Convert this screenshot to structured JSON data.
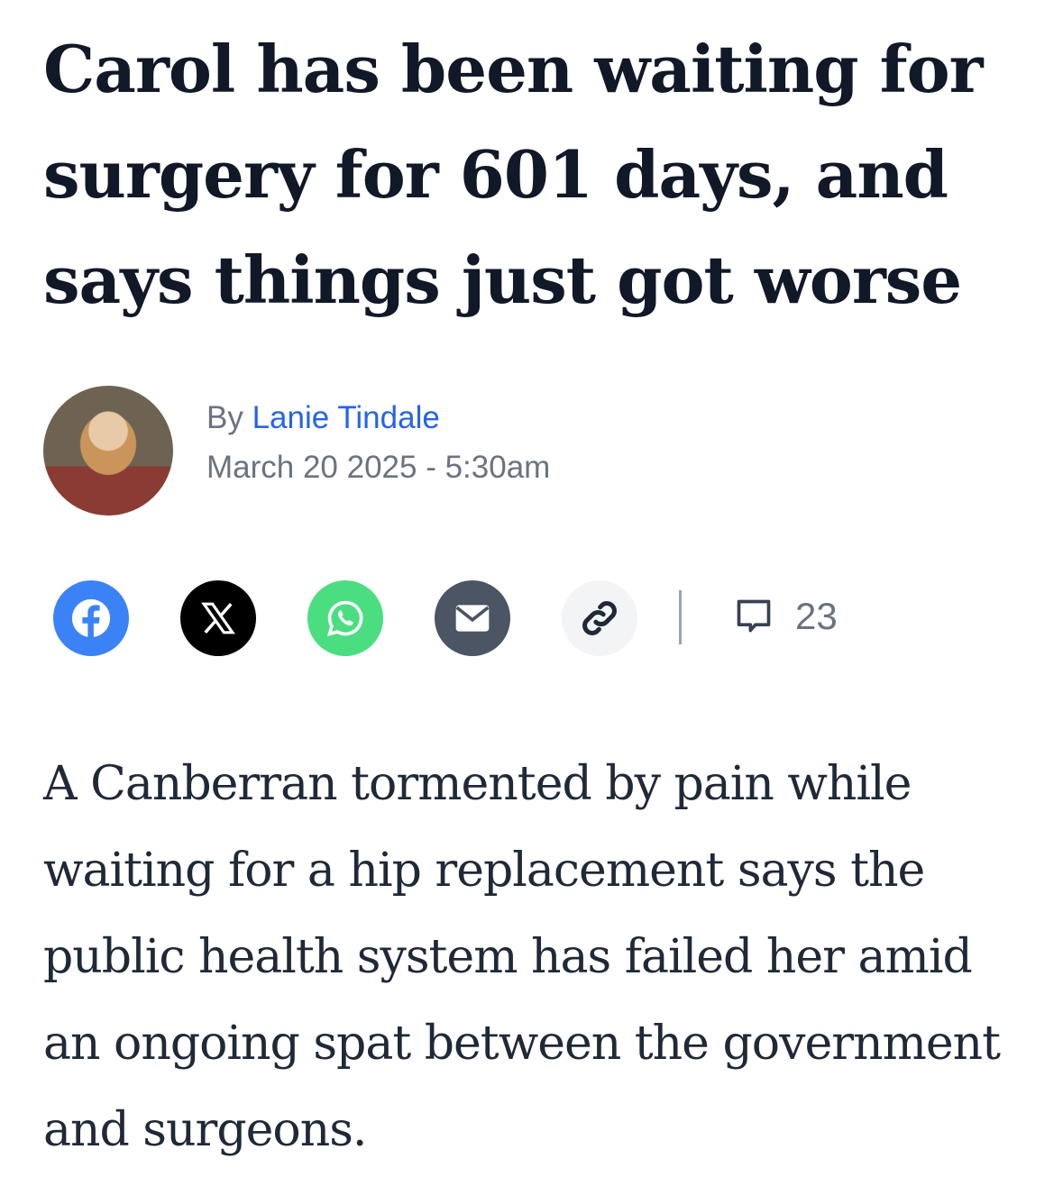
{
  "article": {
    "headline_lines": [
      "Carol has been waiting for",
      "surgery for 601 days, and",
      "says things just got worse"
    ],
    "byline_prefix": "By",
    "author": "Lanie Tindale",
    "date": "March 20 2025 - 5:30am",
    "comment_count": "23",
    "standfirst_lines": [
      "A Canberran tormented by pain while",
      "waiting for a hip replacement says the",
      "public health system has failed her amid",
      "an ongoing spat between the government",
      "and surgeons."
    ]
  },
  "share": [
    {
      "icon": "facebook-icon",
      "color": "#3b82f6"
    },
    {
      "icon": "x-icon",
      "color": "#000000"
    },
    {
      "icon": "whatsapp-icon",
      "color": "#4ade80"
    },
    {
      "icon": "email-icon",
      "color": "#4b5563"
    },
    {
      "icon": "link-icon",
      "color": "#f3f4f6"
    }
  ],
  "colors": {
    "author_link": "#2563eb",
    "headline": "#111827",
    "meta": "#6b7280"
  }
}
